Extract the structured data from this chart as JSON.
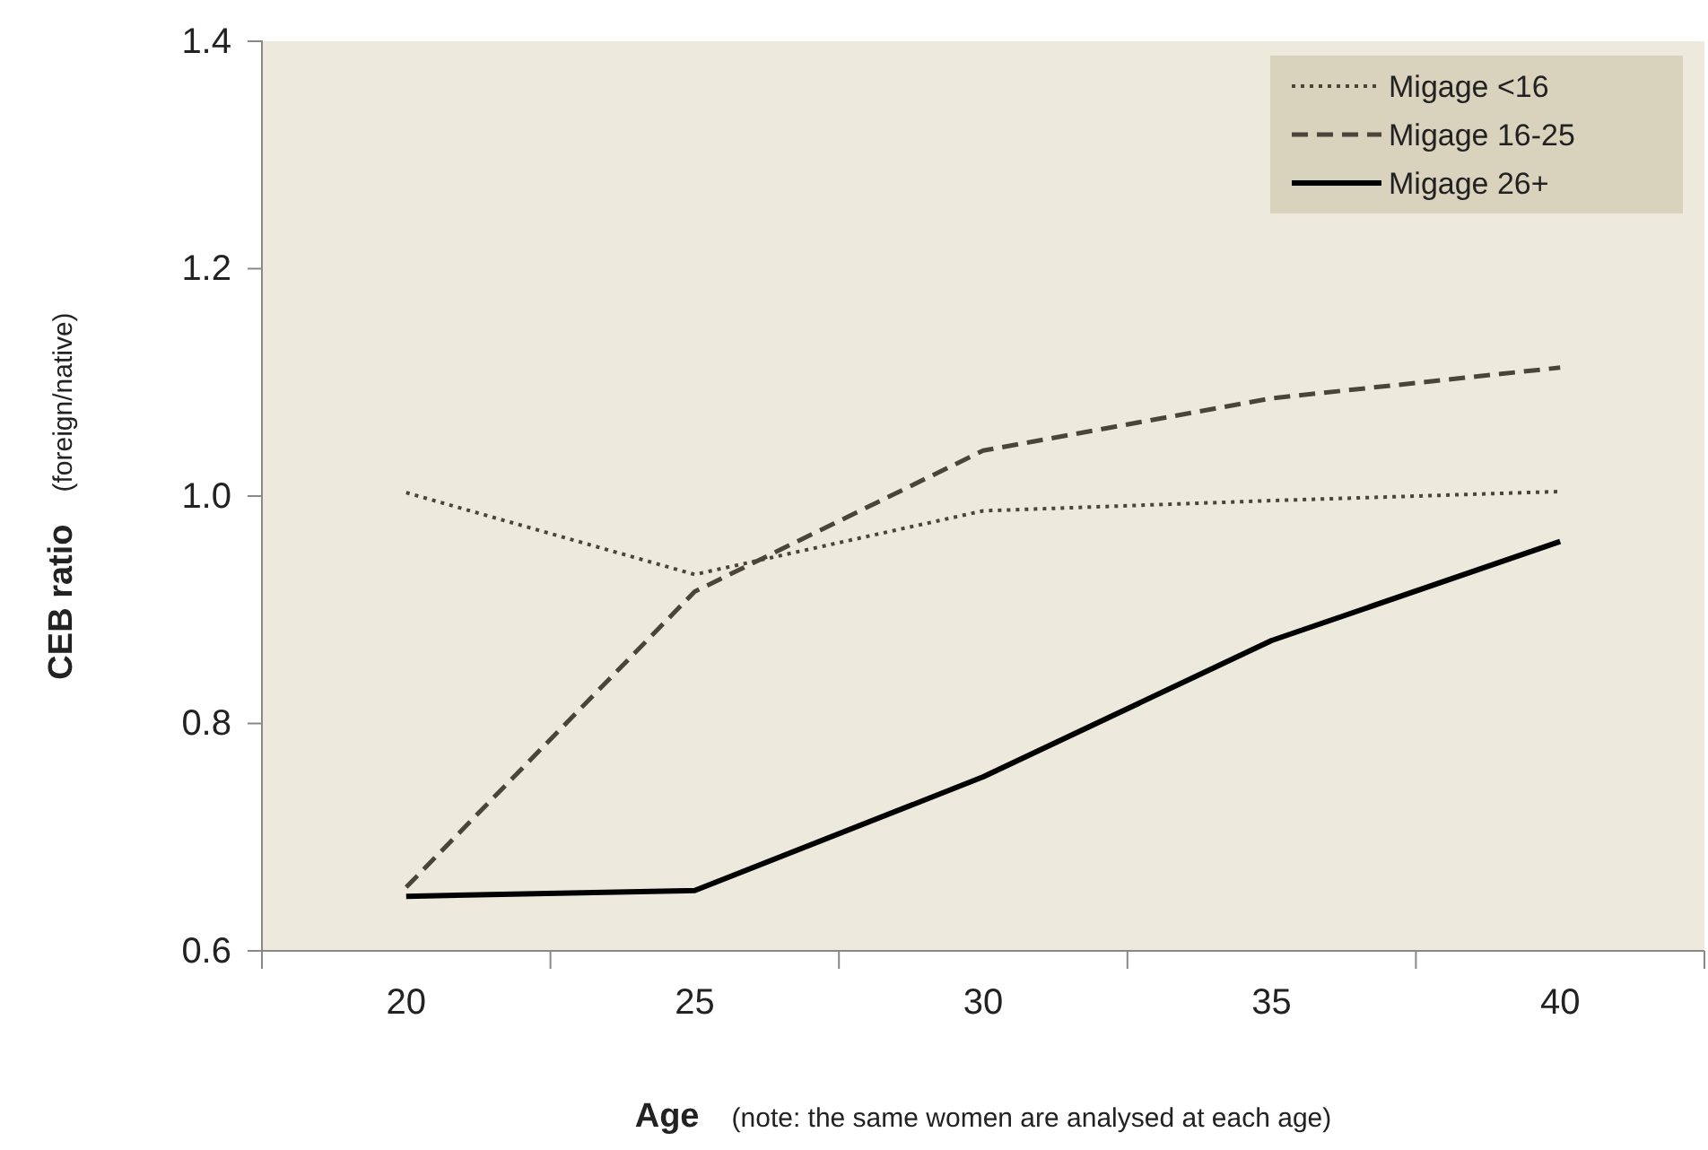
{
  "chart_data": {
    "type": "line",
    "xlabel": "Age",
    "ylabel": "CEB ratio",
    "annotations": [
      "(foreign/native)",
      "(note: the same women are analysed at each age)"
    ],
    "categories": [
      "20",
      "25",
      "30",
      "35",
      "40"
    ],
    "series": [
      {
        "name": "Migage <16",
        "color": "#4a4538",
        "line_style": "dotted",
        "values": [
          1.003,
          0.931,
          0.987,
          0.996,
          1.004
        ]
      },
      {
        "name": "Migage 16-25",
        "color": "#4a4538",
        "line_style": "dashed",
        "values": [
          0.656,
          0.916,
          1.04,
          1.086,
          1.113
        ]
      },
      {
        "name": "Migage 26+",
        "color": "#000000",
        "line_style": "solid",
        "values": [
          0.648,
          0.653,
          0.753,
          0.873,
          0.96
        ]
      }
    ],
    "ylim": [
      0.6,
      1.4
    ],
    "yticks": [
      {
        "value": 0.6,
        "label": "0.6"
      },
      {
        "value": 0.8,
        "label": "0.8"
      },
      {
        "value": 1.0,
        "label": "1.0"
      },
      {
        "value": 1.2,
        "label": "1.2"
      },
      {
        "value": 1.4,
        "label": "1.4"
      }
    ],
    "grid": false,
    "legend": "top right",
    "marker": "none"
  }
}
